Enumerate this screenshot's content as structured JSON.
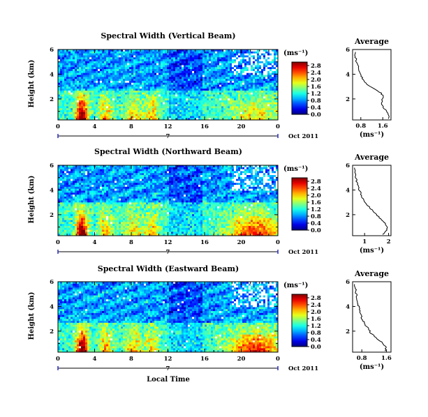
{
  "chart_data": [
    {
      "type": "heatmap",
      "title": "Spectral Width (Vertical Beam)",
      "ylabel": "Height (km)",
      "x_ticks": [
        "0",
        "4",
        "8",
        "12",
        "16",
        "20",
        "0"
      ],
      "y_ticks": [
        "2",
        "4",
        "6"
      ],
      "ylim": [
        0.3,
        6.0
      ],
      "xlim": [
        0,
        24
      ],
      "date_label": "7",
      "month_label": "Oct 2011",
      "colorbar": {
        "unit": "(ms⁻¹)",
        "ticks": [
          "0.0",
          "0.4",
          "0.8",
          "1.2",
          "1.6",
          "2.0",
          "2.4",
          "2.8"
        ],
        "range": [
          0.0,
          3.0
        ]
      },
      "profile": {
        "title": "Average",
        "xlabel": "(ms⁻¹)",
        "x_ticks": [
          "0.8",
          "1.6"
        ],
        "x_tick_values": [
          0.8,
          1.6
        ],
        "xlim": [
          0.5,
          1.9
        ],
        "y_ticks": [
          "2",
          "4",
          "6"
        ],
        "height": [
          0.4,
          0.7,
          1.0,
          1.3,
          1.6,
          1.9,
          2.2,
          2.5,
          2.8,
          3.1,
          3.4,
          3.7,
          4.0,
          4.3,
          4.6,
          4.9,
          5.2,
          5.5,
          5.8
        ],
        "width": [
          1.8,
          1.82,
          1.75,
          1.62,
          1.55,
          1.58,
          1.62,
          1.52,
          1.3,
          1.05,
          0.92,
          0.85,
          0.8,
          0.74,
          0.7,
          0.66,
          0.62,
          0.6,
          0.58
        ]
      }
    },
    {
      "type": "heatmap",
      "title": "Spectral Width (Northward Beam)",
      "ylabel": "Height (km)",
      "x_ticks": [
        "0",
        "4",
        "8",
        "12",
        "16",
        "20",
        "0"
      ],
      "y_ticks": [
        "2",
        "4",
        "6"
      ],
      "ylim": [
        0.3,
        6.0
      ],
      "xlim": [
        0,
        24
      ],
      "date_label": "7",
      "month_label": "Oct 2011",
      "colorbar": {
        "unit": "(ms⁻¹)",
        "ticks": [
          "0.0",
          "0.4",
          "0.8",
          "1.2",
          "1.6",
          "2.0",
          "2.4",
          "2.8"
        ],
        "range": [
          0.0,
          3.0
        ]
      },
      "profile": {
        "title": "Average",
        "xlabel": "(ms⁻¹)",
        "x_ticks": [
          "1",
          "2"
        ],
        "x_tick_values": [
          1,
          2
        ],
        "xlim": [
          0.5,
          2.1
        ],
        "y_ticks": [
          "2",
          "4",
          "6"
        ],
        "height": [
          0.4,
          0.7,
          1.0,
          1.3,
          1.6,
          1.9,
          2.2,
          2.5,
          2.8,
          3.1,
          3.4,
          3.7,
          4.0,
          4.3,
          4.6,
          4.9,
          5.2,
          5.5,
          5.8
        ],
        "width": [
          1.75,
          1.9,
          1.95,
          1.85,
          1.7,
          1.55,
          1.4,
          1.25,
          1.1,
          0.98,
          0.9,
          0.85,
          0.78,
          0.72,
          0.68,
          0.65,
          0.62,
          0.6,
          0.58
        ]
      }
    },
    {
      "type": "heatmap",
      "title": "Spectral Width (Eastward Beam)",
      "ylabel": "Height (km)",
      "xlabel": "Local Time",
      "x_ticks": [
        "0",
        "4",
        "8",
        "12",
        "16",
        "20",
        "0"
      ],
      "y_ticks": [
        "2",
        "4",
        "6"
      ],
      "ylim": [
        0.3,
        6.0
      ],
      "xlim": [
        0,
        24
      ],
      "date_label": "7",
      "month_label": "Oct 2011",
      "colorbar": {
        "unit": "(ms⁻¹)",
        "ticks": [
          "0.0",
          "0.4",
          "0.8",
          "1.2",
          "1.6",
          "2.0",
          "2.4",
          "2.8"
        ],
        "range": [
          0.0,
          3.0
        ]
      },
      "profile": {
        "title": "Average",
        "xlabel": "(ms⁻¹)",
        "x_ticks": [
          "0.8",
          "1.6"
        ],
        "x_tick_values": [
          0.8,
          1.6
        ],
        "xlim": [
          0.5,
          1.75
        ],
        "y_ticks": [
          "2",
          "4",
          "6"
        ],
        "height": [
          0.4,
          0.7,
          1.0,
          1.3,
          1.6,
          1.9,
          2.2,
          2.5,
          2.8,
          3.1,
          3.4,
          3.7,
          4.0,
          4.3,
          4.6,
          4.9,
          5.2,
          5.5,
          5.8
        ],
        "width": [
          1.55,
          1.6,
          1.5,
          1.35,
          1.2,
          1.08,
          1.0,
          0.92,
          0.85,
          0.8,
          0.75,
          0.72,
          0.7,
          0.66,
          0.64,
          0.62,
          0.6,
          0.6,
          0.58
        ]
      }
    }
  ]
}
